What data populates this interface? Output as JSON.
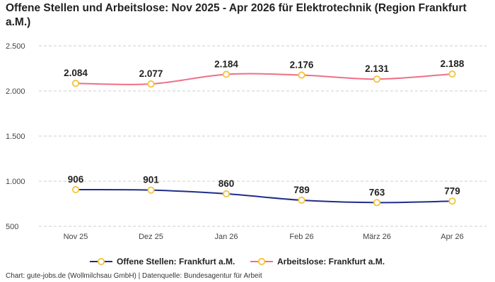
{
  "title": "Offene Stellen und Arbeitslose: Nov 2025 - Apr 2026 für Elektrotechnik (Region Frankfurt a.M.)",
  "footer": "Chart: gute-jobs.de (Wollmilchsau GmbH) | Datenquelle: Bundesagentur für Arbeit",
  "colors": {
    "offene": "#1f2d86",
    "arbeitslose": "#ef6f86",
    "marker_fill": "#ffffff",
    "marker_stroke": "#f4c23a",
    "grid": "#cccccc"
  },
  "chart_data": {
    "type": "line",
    "categories": [
      "Nov 25",
      "Dez 25",
      "Jan 26",
      "Feb 26",
      "März 26",
      "Apr 26"
    ],
    "ylim": [
      500,
      2500
    ],
    "yticks": [
      500,
      1000,
      1500,
      2000,
      2500
    ],
    "ytick_labels": [
      "500",
      "1.000",
      "1.500",
      "2.000",
      "2.500"
    ],
    "grid": true,
    "legend_position": "bottom",
    "series": [
      {
        "name": "Offene Stellen: Frankfurt a.M.",
        "color": "#1f2d86",
        "values": [
          906,
          901,
          860,
          789,
          763,
          779
        ],
        "labels": [
          "906",
          "901",
          "860",
          "789",
          "763",
          "779"
        ]
      },
      {
        "name": "Arbeitslose: Frankfurt a.M.",
        "color": "#ef6f86",
        "values": [
          2084,
          2077,
          2184,
          2176,
          2131,
          2188
        ],
        "labels": [
          "2.084",
          "2.077",
          "2.184",
          "2.176",
          "2.131",
          "2.188"
        ]
      }
    ]
  }
}
